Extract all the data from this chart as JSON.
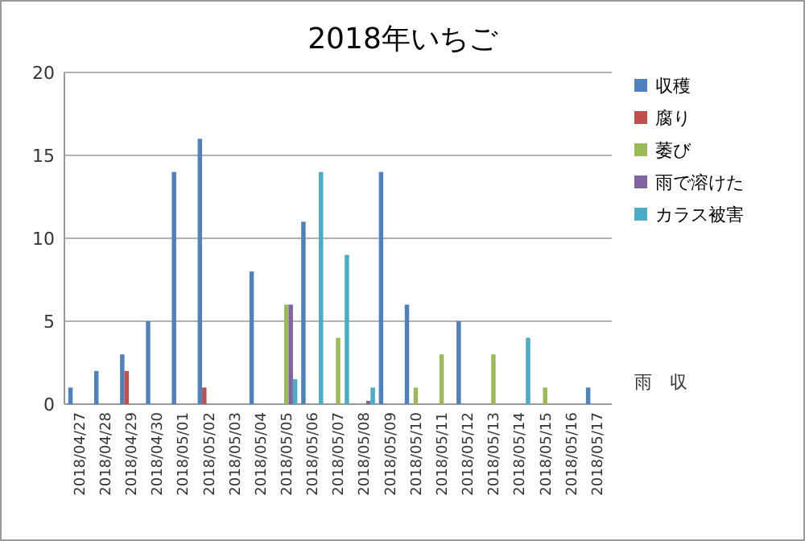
{
  "chart_data": {
    "type": "bar",
    "title": "2018年いちご",
    "categories": [
      "2018/04/27",
      "2018/04/28",
      "2018/04/29",
      "2018/04/30",
      "2018/05/01",
      "2018/05/02",
      "2018/05/03",
      "2018/05/04",
      "2018/05/05",
      "2018/05/06",
      "2018/05/07",
      "2018/05/08",
      "2018/05/09",
      "2018/05/10",
      "2018/05/11",
      "2018/05/12",
      "2018/05/13",
      "2018/05/14",
      "2018/05/15",
      "2018/05/16",
      "2018/05/17"
    ],
    "series": [
      {
        "name": "収穫",
        "color": "#4f81bd",
        "values": [
          1,
          2,
          3,
          5,
          14,
          16,
          null,
          8,
          null,
          11,
          null,
          null,
          14,
          6,
          null,
          5,
          null,
          null,
          null,
          null,
          1
        ]
      },
      {
        "name": "腐り",
        "color": "#c0504d",
        "values": [
          null,
          null,
          2,
          null,
          null,
          1,
          null,
          null,
          null,
          null,
          null,
          null,
          null,
          null,
          null,
          null,
          null,
          null,
          null,
          null,
          null
        ]
      },
      {
        "name": "萎び",
        "color": "#9bbb59",
        "values": [
          null,
          null,
          null,
          null,
          null,
          null,
          null,
          null,
          6,
          null,
          4,
          null,
          null,
          1,
          3,
          null,
          3,
          null,
          1,
          null,
          null
        ]
      },
      {
        "name": "雨で溶けた",
        "color": "#8064a2",
        "values": [
          null,
          null,
          null,
          null,
          null,
          null,
          null,
          null,
          6,
          null,
          null,
          0.2,
          null,
          null,
          null,
          null,
          null,
          null,
          null,
          null,
          null
        ]
      },
      {
        "name": "カラス被害",
        "color": "#4bacc6",
        "values": [
          null,
          null,
          null,
          null,
          null,
          null,
          null,
          null,
          1.5,
          14,
          9,
          1,
          null,
          null,
          null,
          null,
          null,
          4,
          null,
          null,
          null
        ]
      }
    ],
    "ylim": [
      0,
      20
    ],
    "yticks": [
      0,
      5,
      10,
      15,
      20
    ],
    "grid": "y",
    "legend": "top right",
    "annotations": [
      "雨",
      "収"
    ]
  }
}
